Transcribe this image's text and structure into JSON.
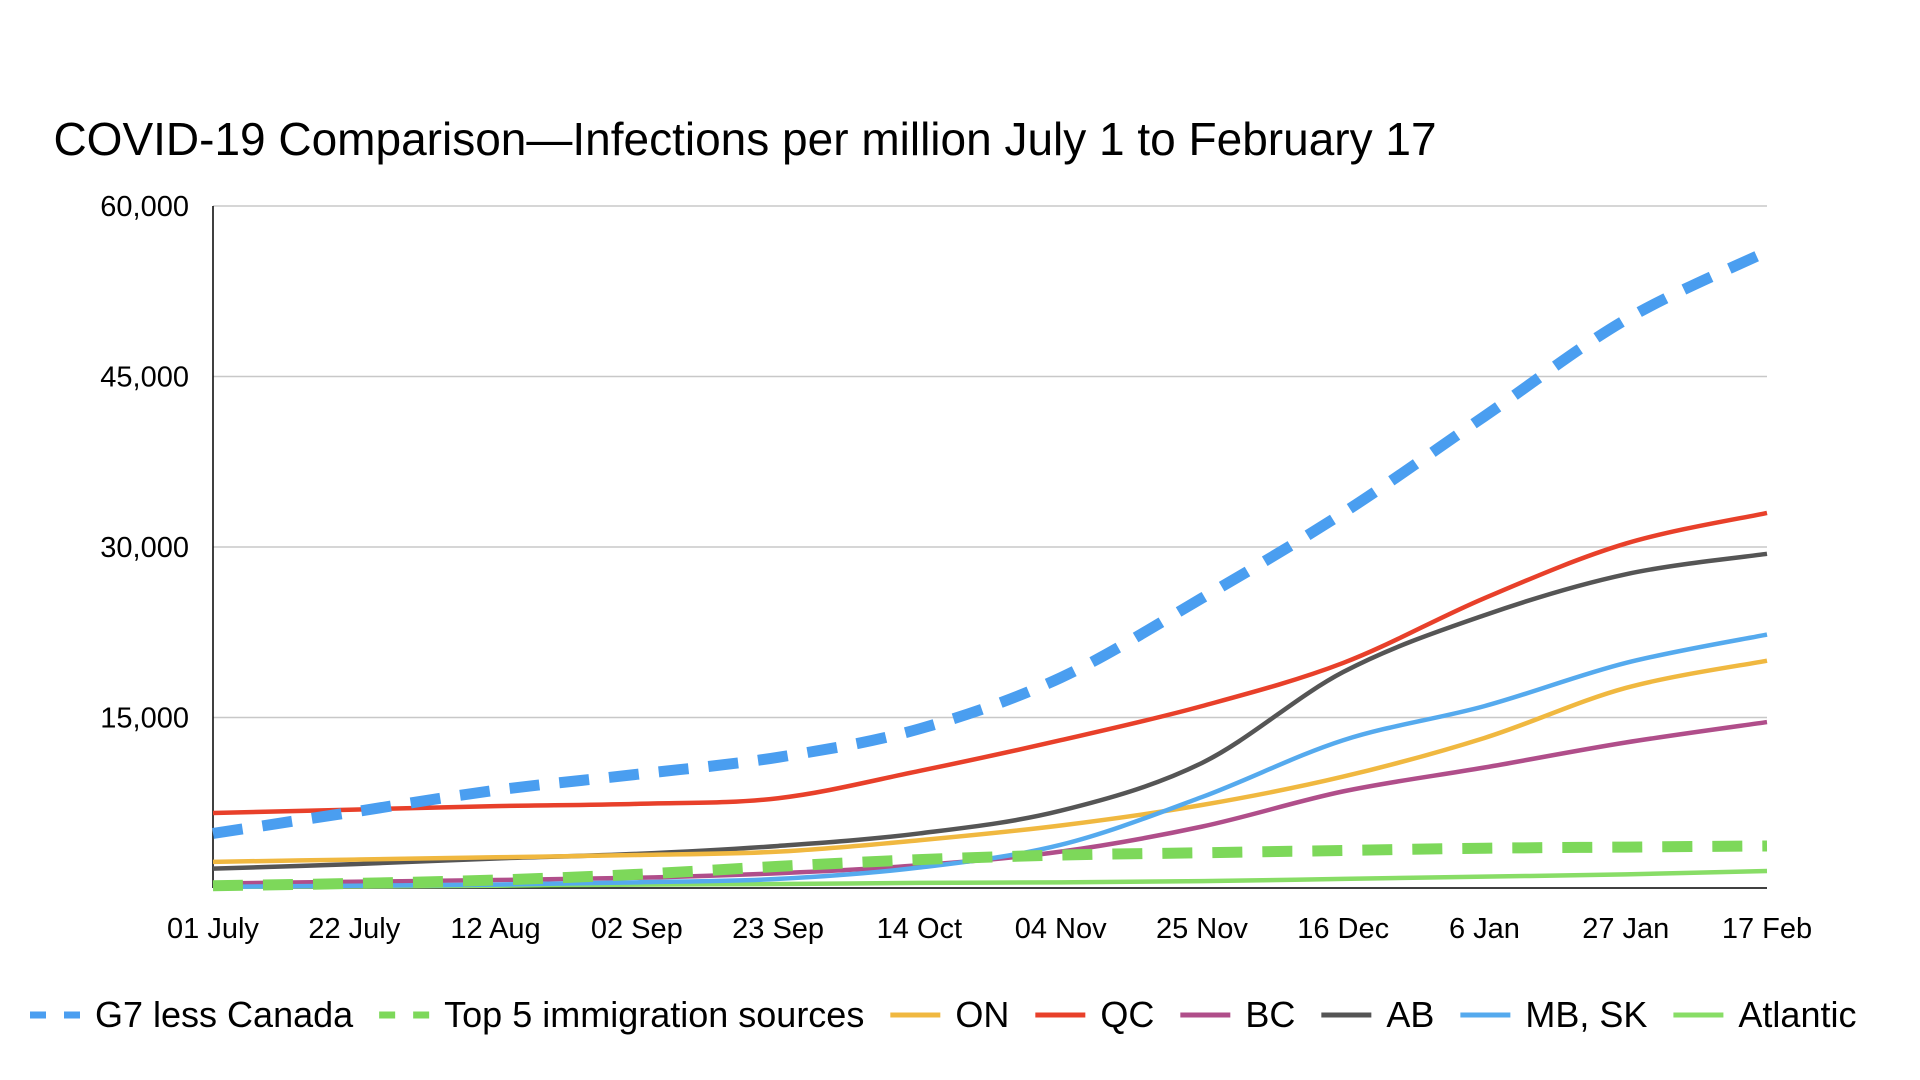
{
  "chart_data": {
    "type": "line",
    "title": "COVID-19 Comparison—Infections per million July 1 to February 17",
    "xlabel": "",
    "ylabel": "",
    "ylim": [
      0,
      60000
    ],
    "yticks": [
      15000,
      30000,
      45000,
      60000
    ],
    "ytick_labels": [
      "15,000",
      "30,000",
      "45,000",
      "60,000"
    ],
    "x_labels": [
      "01 July",
      "22 July",
      "12 Aug",
      "02 Sep",
      "23 Sep",
      "14 Oct",
      "04 Nov",
      "25 Nov",
      "16 Dec",
      "6 Jan",
      "27 Jan",
      "17 Feb"
    ],
    "grid": true,
    "legend_position": "bottom",
    "series": [
      {
        "name": "G7 less Canada",
        "color": "#4a9ef0",
        "style": "dashed",
        "values": [
          4800,
          6700,
          8600,
          10000,
          11500,
          14000,
          18500,
          25500,
          33000,
          41500,
          50000,
          56000
        ]
      },
      {
        "name": "Top 5 immigration sources",
        "color": "#7dd85a",
        "style": "dashed",
        "values": [
          200,
          400,
          700,
          1200,
          1900,
          2500,
          2900,
          3100,
          3300,
          3500,
          3600,
          3700
        ]
      },
      {
        "name": "ON",
        "color": "#f0b840",
        "style": "solid",
        "values": [
          2300,
          2500,
          2700,
          2900,
          3200,
          4200,
          5500,
          7300,
          9800,
          13200,
          17600,
          20000
        ]
      },
      {
        "name": "QC",
        "color": "#e8402a",
        "style": "solid",
        "values": [
          6600,
          6900,
          7200,
          7400,
          7900,
          10300,
          13000,
          16000,
          19800,
          25500,
          30300,
          33000
        ]
      },
      {
        "name": "BC",
        "color": "#b04e8a",
        "style": "solid",
        "values": [
          400,
          550,
          700,
          900,
          1300,
          2000,
          3200,
          5400,
          8500,
          10600,
          12800,
          14600
        ]
      },
      {
        "name": "AB",
        "color": "#555555",
        "style": "solid",
        "values": [
          1700,
          2100,
          2600,
          3000,
          3700,
          4800,
          6800,
          11000,
          19000,
          24000,
          27600,
          29400
        ]
      },
      {
        "name": "MB, SK",
        "color": "#55aaee",
        "style": "solid",
        "values": [
          100,
          200,
          300,
          500,
          800,
          1800,
          3800,
          8000,
          13000,
          16000,
          19800,
          22300
        ]
      },
      {
        "name": "Atlantic",
        "color": "#88dd66",
        "style": "solid",
        "values": [
          100,
          150,
          200,
          300,
          350,
          450,
          500,
          600,
          800,
          1000,
          1200,
          1500
        ]
      }
    ]
  }
}
